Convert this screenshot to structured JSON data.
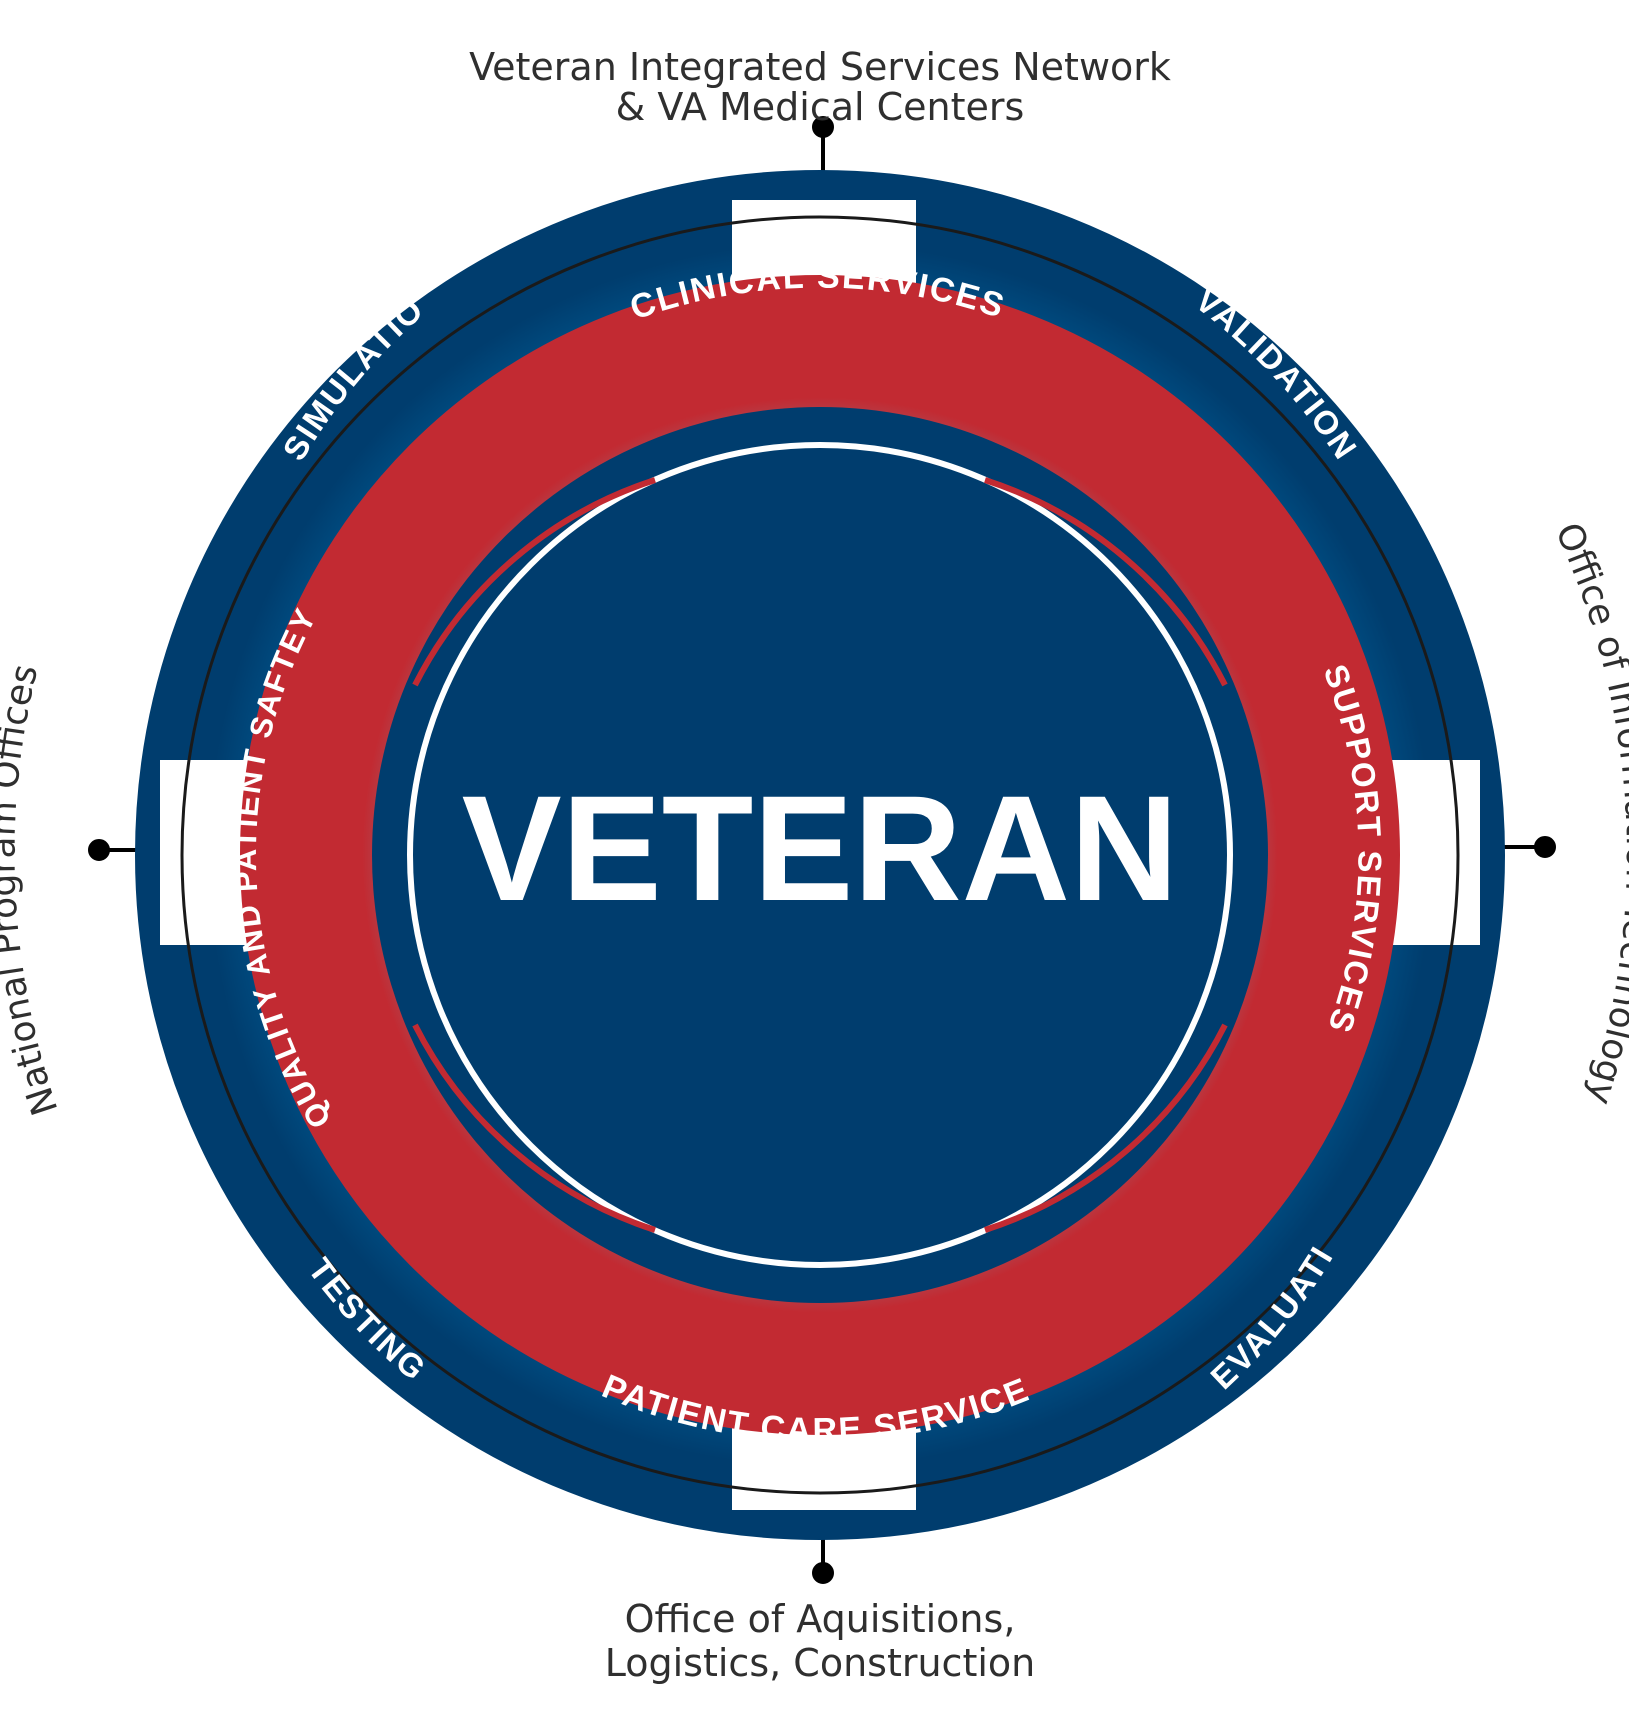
{
  "center": {
    "label": "VETERAN"
  },
  "outer_ring": {
    "labels": {
      "simulation": "SIMULATION",
      "validation": "VALIDATION",
      "testing": "TESTING",
      "evaluation": "EVALUATION"
    }
  },
  "inner_ring": {
    "labels": {
      "clinical": "CLINICAL SERVICES",
      "patient_care": "PATIENT CARE SERVICES",
      "quality": "QUALITY AND PATIENT SAFTEY",
      "support": "SUPPORT SERVICES"
    }
  },
  "stakeholders": {
    "top_line1": "Veteran Integrated Services Network",
    "top_line2": "& VA Medical Centers",
    "bottom_line1": "Office of Aquisitions,",
    "bottom_line2": "Logistics, Construction",
    "left": "National Program Offices",
    "right": "Office of Information Technology"
  },
  "colors": {
    "navy": "#003d6e",
    "blue": "#005f99",
    "red": "#c22a32",
    "white": "#ffffff",
    "text": "#2f2f2f"
  }
}
